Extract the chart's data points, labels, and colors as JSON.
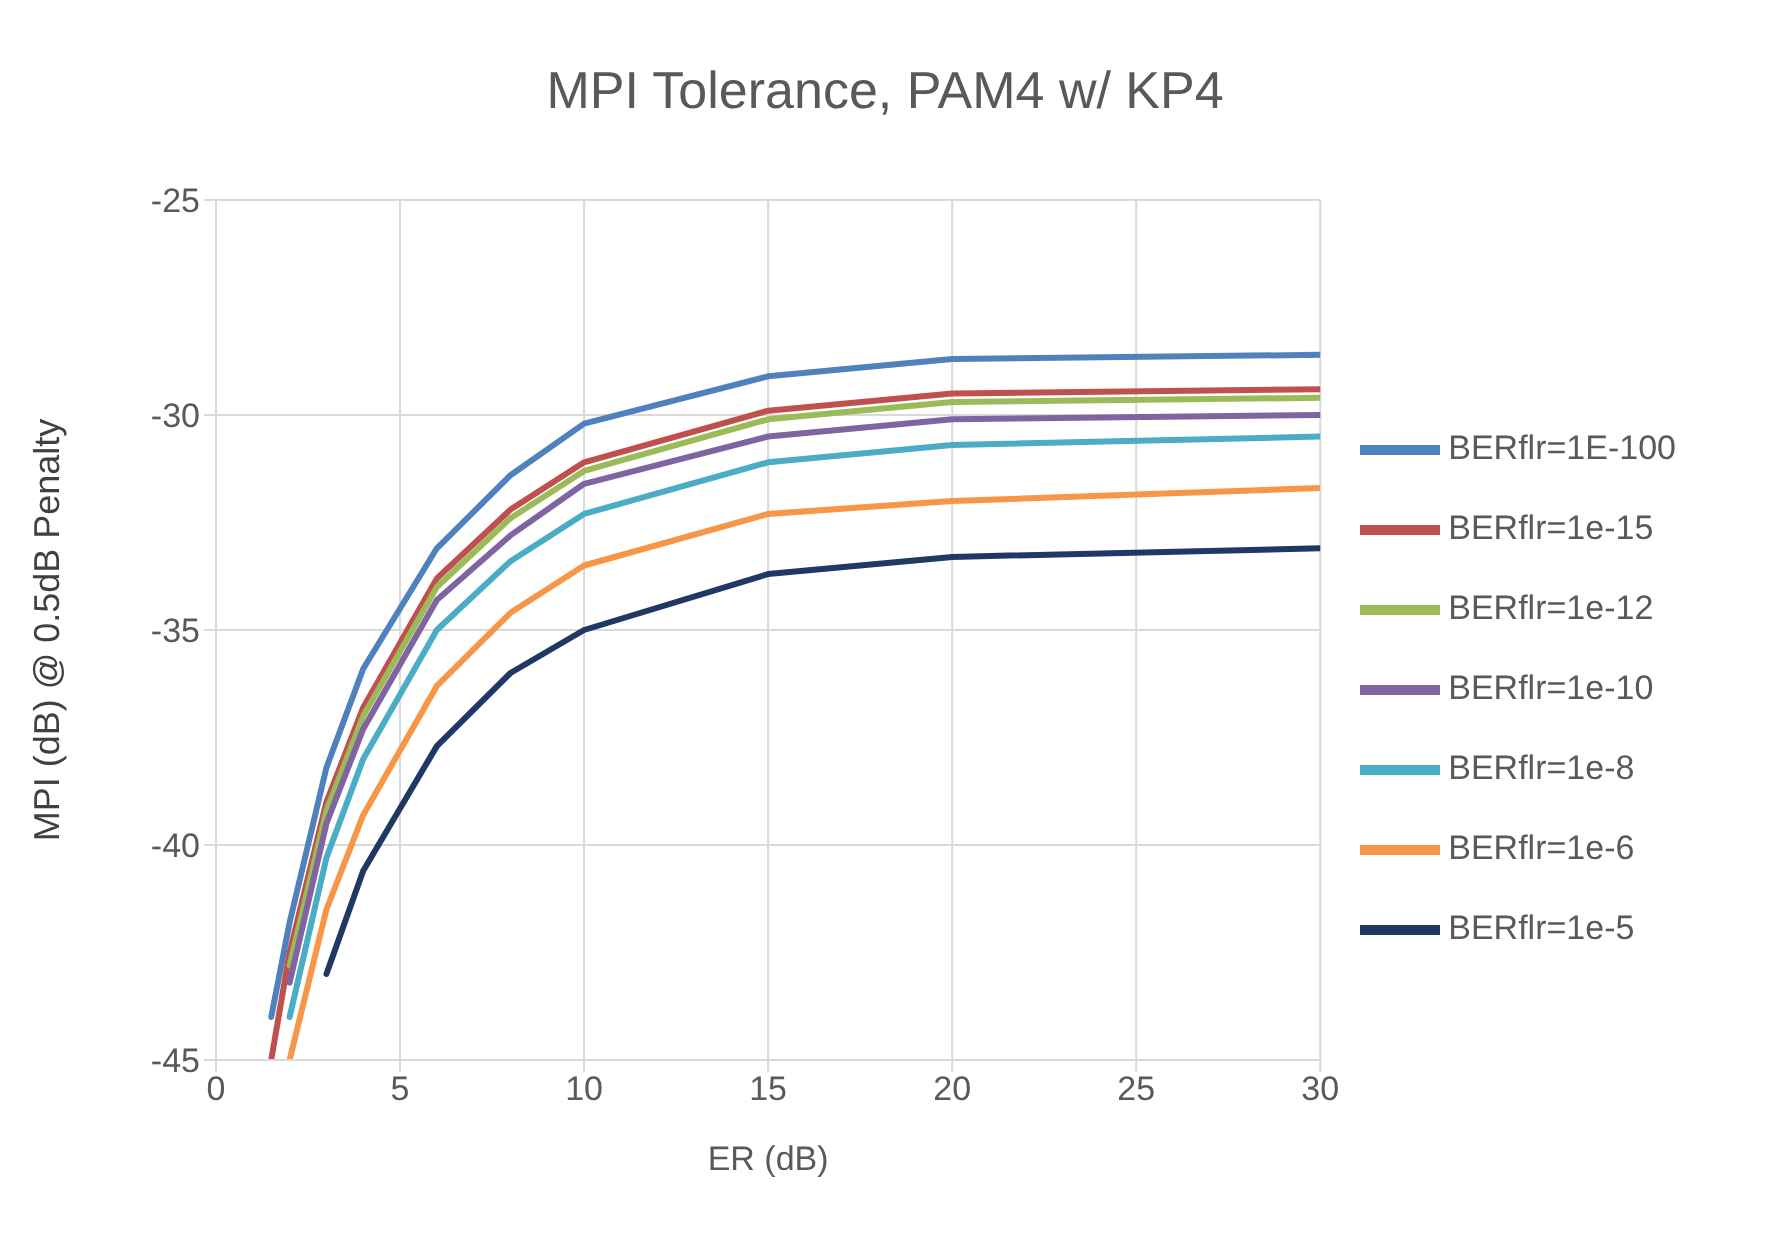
{
  "chart_data": {
    "type": "line",
    "title": "MPI Tolerance, PAM4 w/ KP4",
    "xlabel": "ER (dB)",
    "ylabel": "MPI (dB) @ 0.5dB Penalty",
    "x": [
      1.5,
      2,
      3,
      4,
      6,
      8,
      10,
      15,
      20,
      30
    ],
    "series": [
      {
        "name": "BERflr=1E-100",
        "color": "#4f81bd",
        "values": [
          -44.0,
          -41.8,
          -38.2,
          -35.9,
          -33.1,
          -31.4,
          -30.2,
          -29.1,
          -28.7,
          -28.6
        ]
      },
      {
        "name": "BERflr=1e-15",
        "color": "#c0504d",
        "values": [
          -45.0,
          -42.5,
          -39.0,
          -36.8,
          -33.8,
          -32.2,
          -31.1,
          -29.9,
          -29.5,
          -29.4
        ]
      },
      {
        "name": "BERflr=1e-12",
        "color": "#9bbb59",
        "values": [
          null,
          -42.8,
          -39.2,
          -37.0,
          -34.0,
          -32.4,
          -31.3,
          -30.1,
          -29.7,
          -29.6
        ]
      },
      {
        "name": "BERflr=1e-10",
        "color": "#8064a2",
        "values": [
          null,
          -43.2,
          -39.5,
          -37.3,
          -34.3,
          -32.8,
          -31.6,
          -30.5,
          -30.1,
          -30.0
        ]
      },
      {
        "name": "BERflr=1e-8",
        "color": "#4bacc6",
        "values": [
          null,
          -44.0,
          -40.3,
          -38.0,
          -35.0,
          -33.4,
          -32.3,
          -31.1,
          -30.7,
          -30.5
        ]
      },
      {
        "name": "BERflr=1e-6",
        "color": "#f79646",
        "values": [
          null,
          -45.0,
          -41.5,
          -39.3,
          -36.3,
          -34.6,
          -33.5,
          -32.3,
          -32.0,
          -31.7
        ]
      },
      {
        "name": "BERflr=1e-5",
        "color": "#1f3864",
        "values": [
          null,
          null,
          -43.0,
          -40.6,
          -37.7,
          -36.0,
          -35.0,
          -33.7,
          -33.3,
          -33.1
        ]
      }
    ],
    "xlim": [
      0,
      30
    ],
    "xticks": [
      0,
      5,
      10,
      15,
      20,
      25,
      30
    ],
    "ylim": [
      -45,
      -25
    ],
    "yticks": [
      -45,
      -40,
      -35,
      -30,
      -25
    ],
    "grid": true,
    "legend": "right",
    "marker": "none",
    "line_style": "solid"
  }
}
